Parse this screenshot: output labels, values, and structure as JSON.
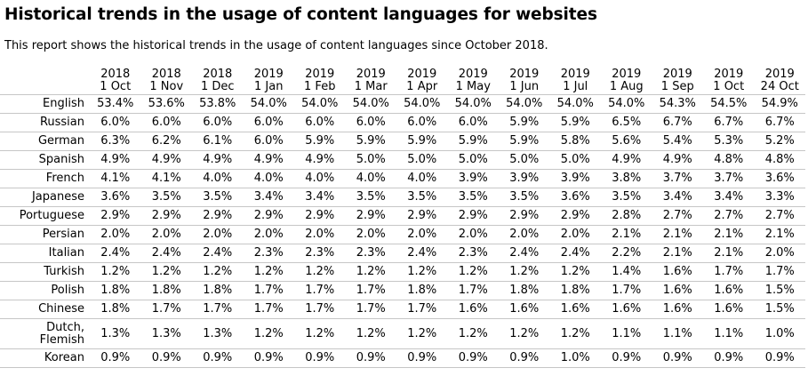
{
  "title": "Historical trends in the usage of content languages for websites",
  "description": "This report shows the historical trends in the usage of content languages since October 2018.",
  "columns": [
    {
      "year": "2018",
      "date": "1 Oct"
    },
    {
      "year": "2018",
      "date": "1 Nov"
    },
    {
      "year": "2018",
      "date": "1 Dec"
    },
    {
      "year": "2019",
      "date": "1 Jan"
    },
    {
      "year": "2019",
      "date": "1 Feb"
    },
    {
      "year": "2019",
      "date": "1 Mar"
    },
    {
      "year": "2019",
      "date": "1 Apr"
    },
    {
      "year": "2019",
      "date": "1 May"
    },
    {
      "year": "2019",
      "date": "1 Jun"
    },
    {
      "year": "2019",
      "date": "1 Jul"
    },
    {
      "year": "2019",
      "date": "1 Aug"
    },
    {
      "year": "2019",
      "date": "1 Sep"
    },
    {
      "year": "2019",
      "date": "1 Oct"
    },
    {
      "year": "2019",
      "date": "24 Oct"
    }
  ],
  "rows": [
    {
      "language": "English",
      "values": [
        "53.4%",
        "53.6%",
        "53.8%",
        "54.0%",
        "54.0%",
        "54.0%",
        "54.0%",
        "54.0%",
        "54.0%",
        "54.0%",
        "54.0%",
        "54.3%",
        "54.5%",
        "54.9%"
      ]
    },
    {
      "language": "Russian",
      "values": [
        "6.0%",
        "6.0%",
        "6.0%",
        "6.0%",
        "6.0%",
        "6.0%",
        "6.0%",
        "6.0%",
        "5.9%",
        "5.9%",
        "6.5%",
        "6.7%",
        "6.7%",
        "6.7%"
      ]
    },
    {
      "language": "German",
      "values": [
        "6.3%",
        "6.2%",
        "6.1%",
        "6.0%",
        "5.9%",
        "5.9%",
        "5.9%",
        "5.9%",
        "5.9%",
        "5.8%",
        "5.6%",
        "5.4%",
        "5.3%",
        "5.2%"
      ]
    },
    {
      "language": "Spanish",
      "values": [
        "4.9%",
        "4.9%",
        "4.9%",
        "4.9%",
        "4.9%",
        "5.0%",
        "5.0%",
        "5.0%",
        "5.0%",
        "5.0%",
        "4.9%",
        "4.9%",
        "4.8%",
        "4.8%"
      ]
    },
    {
      "language": "French",
      "values": [
        "4.1%",
        "4.1%",
        "4.0%",
        "4.0%",
        "4.0%",
        "4.0%",
        "4.0%",
        "3.9%",
        "3.9%",
        "3.9%",
        "3.8%",
        "3.7%",
        "3.7%",
        "3.6%"
      ]
    },
    {
      "language": "Japanese",
      "values": [
        "3.6%",
        "3.5%",
        "3.5%",
        "3.4%",
        "3.4%",
        "3.5%",
        "3.5%",
        "3.5%",
        "3.5%",
        "3.6%",
        "3.5%",
        "3.4%",
        "3.4%",
        "3.3%"
      ]
    },
    {
      "language": "Portuguese",
      "values": [
        "2.9%",
        "2.9%",
        "2.9%",
        "2.9%",
        "2.9%",
        "2.9%",
        "2.9%",
        "2.9%",
        "2.9%",
        "2.9%",
        "2.8%",
        "2.7%",
        "2.7%",
        "2.7%"
      ]
    },
    {
      "language": "Persian",
      "values": [
        "2.0%",
        "2.0%",
        "2.0%",
        "2.0%",
        "2.0%",
        "2.0%",
        "2.0%",
        "2.0%",
        "2.0%",
        "2.0%",
        "2.1%",
        "2.1%",
        "2.1%",
        "2.1%"
      ]
    },
    {
      "language": "Italian",
      "values": [
        "2.4%",
        "2.4%",
        "2.4%",
        "2.3%",
        "2.3%",
        "2.3%",
        "2.4%",
        "2.3%",
        "2.4%",
        "2.4%",
        "2.2%",
        "2.1%",
        "2.1%",
        "2.0%"
      ]
    },
    {
      "language": "Turkish",
      "values": [
        "1.2%",
        "1.2%",
        "1.2%",
        "1.2%",
        "1.2%",
        "1.2%",
        "1.2%",
        "1.2%",
        "1.2%",
        "1.2%",
        "1.4%",
        "1.6%",
        "1.7%",
        "1.7%"
      ]
    },
    {
      "language": "Polish",
      "values": [
        "1.8%",
        "1.8%",
        "1.8%",
        "1.7%",
        "1.7%",
        "1.7%",
        "1.8%",
        "1.7%",
        "1.8%",
        "1.8%",
        "1.7%",
        "1.6%",
        "1.6%",
        "1.5%"
      ]
    },
    {
      "language": "Chinese",
      "values": [
        "1.8%",
        "1.7%",
        "1.7%",
        "1.7%",
        "1.7%",
        "1.7%",
        "1.7%",
        "1.6%",
        "1.6%",
        "1.6%",
        "1.6%",
        "1.6%",
        "1.6%",
        "1.5%"
      ]
    },
    {
      "language": "Dutch, Flemish",
      "language_lines": [
        "Dutch,",
        "Flemish"
      ],
      "values": [
        "1.3%",
        "1.3%",
        "1.3%",
        "1.2%",
        "1.2%",
        "1.2%",
        "1.2%",
        "1.2%",
        "1.2%",
        "1.2%",
        "1.1%",
        "1.1%",
        "1.1%",
        "1.0%"
      ]
    },
    {
      "language": "Korean",
      "values": [
        "0.9%",
        "0.9%",
        "0.9%",
        "0.9%",
        "0.9%",
        "0.9%",
        "0.9%",
        "0.9%",
        "0.9%",
        "1.0%",
        "0.9%",
        "0.9%",
        "0.9%",
        "0.9%"
      ]
    }
  ]
}
